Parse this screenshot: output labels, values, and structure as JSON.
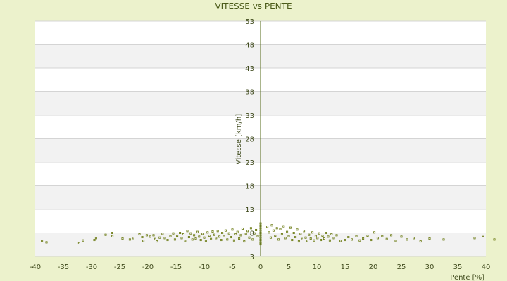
{
  "chart_data": {
    "type": "scatter",
    "title": "VITESSE vs PENTE",
    "xlabel": "Pente [%]",
    "ylabel": "Vitesse [km/h]",
    "xlim": [
      -40,
      40
    ],
    "ylim": [
      3,
      53
    ],
    "x_ticks": [
      "-40",
      "-35",
      "-30",
      "-25",
      "-20",
      "-15",
      "-10",
      "-5",
      "0",
      "5",
      "10",
      "15",
      "20",
      "25",
      "30",
      "35",
      "40"
    ],
    "y_ticks": [
      "3",
      "8",
      "13",
      "18",
      "23",
      "28",
      "33",
      "38",
      "43",
      "48",
      "53"
    ],
    "grid": "horizontal bands",
    "legend": "none",
    "colors": {
      "background": "#ecf2cc",
      "band_light": "#ffffff",
      "band_dark": "#f2f2f2",
      "gridline": "#d4d4d4",
      "marker": "#6b7a12",
      "axis": "#556b1a"
    },
    "series": [
      {
        "points": [
          [
            -38.8,
            6.3
          ],
          [
            -38.0,
            6.0
          ],
          [
            -32.2,
            5.8
          ],
          [
            -31.5,
            6.4
          ],
          [
            -29.5,
            6.5
          ],
          [
            -29.2,
            6.9
          ],
          [
            -27.5,
            7.6
          ],
          [
            -26.4,
            8.0
          ],
          [
            -26.3,
            7.3
          ],
          [
            -24.5,
            6.8
          ],
          [
            -23.2,
            6.6
          ],
          [
            -22.6,
            6.9
          ],
          [
            -21.5,
            7.7
          ],
          [
            -21.0,
            7.1
          ],
          [
            -20.8,
            6.3
          ],
          [
            -20.2,
            7.5
          ],
          [
            -19.6,
            7.2
          ],
          [
            -19.0,
            7.5
          ],
          [
            -18.7,
            6.7
          ],
          [
            -18.4,
            6.2
          ],
          [
            -17.9,
            7.0
          ],
          [
            -17.4,
            7.8
          ],
          [
            -17.0,
            6.9
          ],
          [
            -16.5,
            6.5
          ],
          [
            -16.0,
            7.3
          ],
          [
            -15.5,
            7.9
          ],
          [
            -15.2,
            6.6
          ],
          [
            -14.8,
            7.4
          ],
          [
            -14.3,
            8.0
          ],
          [
            -14.0,
            6.9
          ],
          [
            -13.7,
            7.7
          ],
          [
            -13.4,
            6.3
          ],
          [
            -13.0,
            8.4
          ],
          [
            -12.7,
            7.1
          ],
          [
            -12.4,
            7.9
          ],
          [
            -12.1,
            6.6
          ],
          [
            -11.8,
            7.5
          ],
          [
            -11.5,
            6.8
          ],
          [
            -11.2,
            8.2
          ],
          [
            -10.9,
            7.2
          ],
          [
            -10.6,
            6.5
          ],
          [
            -10.3,
            7.8
          ],
          [
            -10.0,
            7.0
          ],
          [
            -9.7,
            6.3
          ],
          [
            -9.4,
            8.1
          ],
          [
            -9.1,
            7.4
          ],
          [
            -8.8,
            6.7
          ],
          [
            -8.5,
            8.3
          ],
          [
            -8.2,
            7.6
          ],
          [
            -7.9,
            6.9
          ],
          [
            -7.6,
            8.4
          ],
          [
            -7.3,
            7.2
          ],
          [
            -7.0,
            6.5
          ],
          [
            -6.8,
            8.0
          ],
          [
            -6.5,
            7.3
          ],
          [
            -6.2,
            8.5
          ],
          [
            -5.9,
            6.6
          ],
          [
            -5.6,
            7.9
          ],
          [
            -5.3,
            7.1
          ],
          [
            -5.0,
            8.7
          ],
          [
            -4.7,
            6.4
          ],
          [
            -4.4,
            7.7
          ],
          [
            -4.1,
            8.2
          ],
          [
            -3.8,
            6.8
          ],
          [
            -3.5,
            7.5
          ],
          [
            -3.2,
            8.9
          ],
          [
            -2.9,
            6.2
          ],
          [
            -2.6,
            7.8
          ],
          [
            -2.3,
            8.4
          ],
          [
            -2.0,
            7.0
          ],
          [
            -1.7,
            9.0
          ],
          [
            -1.4,
            6.6
          ],
          [
            -1.1,
            7.9
          ],
          [
            -0.8,
            8.6
          ],
          [
            -0.5,
            7.3
          ],
          [
            0.0,
            5.6
          ],
          [
            0.0,
            6.0
          ],
          [
            0.0,
            6.5
          ],
          [
            0.0,
            7.0
          ],
          [
            0.0,
            7.5
          ],
          [
            0.0,
            8.0
          ],
          [
            0.0,
            8.5
          ],
          [
            0.0,
            9.0
          ],
          [
            0.0,
            9.5
          ],
          [
            0.0,
            10.0
          ],
          [
            1.2,
            9.3
          ],
          [
            1.5,
            8.1
          ],
          [
            1.8,
            7.0
          ],
          [
            2.0,
            9.6
          ],
          [
            2.3,
            8.5
          ],
          [
            2.6,
            7.4
          ],
          [
            2.9,
            9.0
          ],
          [
            3.2,
            6.6
          ],
          [
            3.5,
            8.8
          ],
          [
            3.8,
            7.7
          ],
          [
            4.1,
            9.4
          ],
          [
            4.4,
            6.9
          ],
          [
            4.7,
            8.2
          ],
          [
            5.0,
            7.3
          ],
          [
            5.3,
            9.1
          ],
          [
            5.6,
            6.5
          ],
          [
            5.9,
            8.0
          ],
          [
            6.2,
            7.1
          ],
          [
            6.5,
            8.7
          ],
          [
            6.8,
            6.2
          ],
          [
            7.1,
            7.8
          ],
          [
            7.4,
            6.7
          ],
          [
            7.7,
            8.4
          ],
          [
            8.0,
            7.0
          ],
          [
            8.3,
            6.3
          ],
          [
            8.6,
            7.6
          ],
          [
            8.9,
            6.8
          ],
          [
            9.2,
            8.1
          ],
          [
            9.5,
            6.4
          ],
          [
            9.8,
            7.3
          ],
          [
            10.1,
            6.9
          ],
          [
            10.4,
            7.9
          ],
          [
            10.7,
            6.5
          ],
          [
            11.0,
            7.4
          ],
          [
            11.3,
            6.8
          ],
          [
            11.6,
            8.0
          ],
          [
            12.0,
            7.2
          ],
          [
            12.3,
            6.4
          ],
          [
            12.6,
            7.7
          ],
          [
            13.0,
            6.9
          ],
          [
            13.5,
            7.5
          ],
          [
            14.2,
            6.3
          ],
          [
            15.0,
            6.5
          ],
          [
            15.6,
            7.1
          ],
          [
            16.2,
            6.6
          ],
          [
            17.0,
            7.3
          ],
          [
            17.6,
            6.4
          ],
          [
            18.2,
            6.8
          ],
          [
            19.0,
            7.4
          ],
          [
            19.6,
            6.5
          ],
          [
            20.2,
            8.1
          ],
          [
            20.8,
            6.9
          ],
          [
            21.6,
            7.3
          ],
          [
            22.4,
            6.7
          ],
          [
            23.2,
            7.5
          ],
          [
            24.0,
            6.3
          ],
          [
            25.0,
            7.2
          ],
          [
            26.0,
            6.6
          ],
          [
            27.2,
            6.9
          ],
          [
            28.4,
            6.2
          ],
          [
            30.0,
            6.8
          ],
          [
            32.5,
            6.6
          ],
          [
            38.0,
            6.9
          ],
          [
            39.5,
            7.4
          ],
          [
            41.5,
            6.6
          ]
        ]
      }
    ]
  }
}
